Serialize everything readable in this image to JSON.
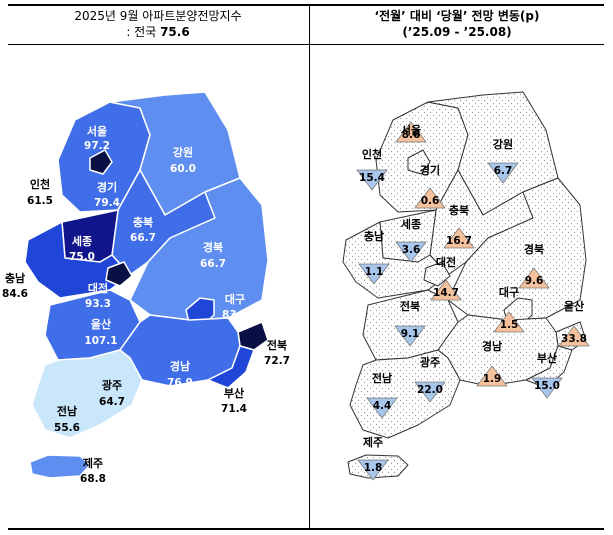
{
  "left_panel": {
    "title_line1": "2025년 9월 아파트분양전망지수",
    "title_line2_prefix": ": 전국 ",
    "national_value": "75.6",
    "regions": [
      {
        "name": "서울",
        "value": "97.2"
      },
      {
        "name": "인천",
        "value": "61.5"
      },
      {
        "name": "경기",
        "value": "79.4"
      },
      {
        "name": "강원",
        "value": "60.0"
      },
      {
        "name": "충북",
        "value": "66.7"
      },
      {
        "name": "세종",
        "value": "75.0"
      },
      {
        "name": "충남",
        "value": "84.6"
      },
      {
        "name": "대전",
        "value": "93.3"
      },
      {
        "name": "경북",
        "value": "66.7"
      },
      {
        "name": "대구",
        "value": "83.3"
      },
      {
        "name": "전북",
        "value": "72.7"
      },
      {
        "name": "울산",
        "value": "107.1"
      },
      {
        "name": "경남",
        "value": "76.9"
      },
      {
        "name": "부산",
        "value": "71.4"
      },
      {
        "name": "광주",
        "value": "64.7"
      },
      {
        "name": "전남",
        "value": "55.6"
      },
      {
        "name": "제주",
        "value": "68.8"
      }
    ]
  },
  "right_panel": {
    "title_line1": "‘전월’ 대비 ‘당월’ 전망 변동(p)",
    "title_line2": "(’25.09  -  ’25.08)",
    "regions": [
      {
        "name": "서울",
        "value": "8.6",
        "direction": "up"
      },
      {
        "name": "인천",
        "value": "15.4",
        "direction": "down"
      },
      {
        "name": "경기",
        "value": "0.6",
        "direction": "up"
      },
      {
        "name": "강원",
        "value": "6.7",
        "direction": "down"
      },
      {
        "name": "충북",
        "value": "16.7",
        "direction": "up"
      },
      {
        "name": "세종",
        "value": "3.6",
        "direction": "down"
      },
      {
        "name": "충남",
        "value": "1.1",
        "direction": "down"
      },
      {
        "name": "대전",
        "value": "14.7",
        "direction": "up"
      },
      {
        "name": "경북",
        "value": "9.6",
        "direction": "up"
      },
      {
        "name": "전북",
        "value": "9.1",
        "direction": "down"
      },
      {
        "name": "대구",
        "value": "1.5",
        "direction": "up"
      },
      {
        "name": "울산",
        "value": "33.8",
        "direction": "up"
      },
      {
        "name": "경남",
        "value": "1.9",
        "direction": "up"
      },
      {
        "name": "광주",
        "value": "22.0",
        "direction": "down"
      },
      {
        "name": "부산",
        "value": "15.0",
        "direction": "down"
      },
      {
        "name": "전남",
        "value": "4.4",
        "direction": "down"
      },
      {
        "name": "제주",
        "value": "1.8",
        "direction": "down"
      }
    ]
  },
  "colors": {
    "level_1": "#c9e6fb",
    "level_2": "#5e8ef0",
    "level_3": "#3f6ee8",
    "level_4": "#2046d8",
    "level_5": "#10158c",
    "level_6": "#0a0f44",
    "up_marker": "#f6c29d",
    "down_marker": "#a8c5ec"
  }
}
